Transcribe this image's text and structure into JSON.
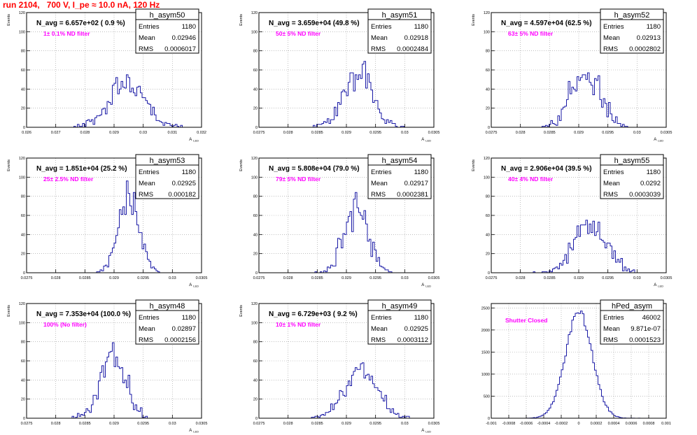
{
  "page": {
    "title": "run 2104,   700 V, I_pe ≈ 10.0 nA, 120 Hz"
  },
  "colors": {
    "histogram_line": "#1a1aa6",
    "annotation": "#ff00ff",
    "title_text": "#ff0000",
    "frame": "#000000",
    "grid": "#999999"
  },
  "chart_data": [
    {
      "type": "histogram",
      "name": "h_asym50",
      "ylabel": "Events",
      "xlabel": "A_LED",
      "navg_text": "N_avg = 6.657e+02 ( 0.9 %)",
      "annotation": "1± 0.1% ND filter",
      "stats": {
        "Entries": "1180",
        "Mean": "0.02946",
        "RMS": "0.0006017"
      },
      "xlim": [
        0.026,
        0.032
      ],
      "ylim": [
        0,
        120
      ],
      "x_ticks": [
        "0.026",
        "0.027",
        "0.028",
        "0.029",
        "0.03",
        "0.031",
        "0.032"
      ],
      "x_tick_values": [
        0.026,
        0.027,
        0.028,
        0.029,
        0.03,
        0.031,
        0.032
      ],
      "y_ticks": [
        0,
        20,
        40,
        60,
        80,
        100,
        120
      ],
      "mean": 0.02946,
      "rms": 0.0006017,
      "entries": 1180,
      "shape": "normal",
      "seed": 11
    },
    {
      "type": "histogram",
      "name": "h_asym51",
      "ylabel": "Events",
      "xlabel": "A_LED",
      "navg_text": "N_avg = 3.659e+04 (49.8 %)",
      "annotation": "50± 5% ND filter",
      "stats": {
        "Entries": "1180",
        "Mean": "0.02918",
        "RMS": "0.0002484"
      },
      "xlim": [
        0.0275,
        0.0305
      ],
      "ylim": [
        0,
        120
      ],
      "x_ticks": [
        "0.0275",
        "0.028",
        "0.0285",
        "0.029",
        "0.0295",
        "0.03",
        "0.0305"
      ],
      "x_tick_values": [
        0.0275,
        0.028,
        0.0285,
        0.029,
        0.0295,
        0.03,
        0.0305
      ],
      "y_ticks": [
        0,
        20,
        40,
        60,
        80,
        100,
        120
      ],
      "mean": 0.02918,
      "rms": 0.0002484,
      "entries": 1180,
      "shape": "normal",
      "seed": 23
    },
    {
      "type": "histogram",
      "name": "h_asym52",
      "ylabel": "Events",
      "xlabel": "A_LED",
      "navg_text": "N_avg = 4.597e+04 (62.5 %)",
      "annotation": "63± 5% ND filter",
      "stats": {
        "Entries": "1180",
        "Mean": "0.02913",
        "RMS": "0.0002802"
      },
      "xlim": [
        0.0275,
        0.0305
      ],
      "ylim": [
        0,
        120
      ],
      "x_ticks": [
        "0.0275",
        "0.028",
        "0.0285",
        "0.029",
        "0.0295",
        "0.03",
        "0.0305"
      ],
      "x_tick_values": [
        0.0275,
        0.028,
        0.0285,
        0.029,
        0.0295,
        0.03,
        0.0305
      ],
      "y_ticks": [
        0,
        20,
        40,
        60,
        80,
        100,
        120
      ],
      "mean": 0.02913,
      "rms": 0.0002802,
      "entries": 1180,
      "shape": "flat",
      "seed": 37
    },
    {
      "type": "histogram",
      "name": "h_asym53",
      "ylabel": "Events",
      "xlabel": "A_LED",
      "navg_text": "N_avg = 1.851e+04 (25.2 %)",
      "annotation": "25± 2.5% ND filter",
      "stats": {
        "Entries": "1180",
        "Mean": "0.02925",
        "RMS": "0.000182"
      },
      "xlim": [
        0.0275,
        0.0305
      ],
      "ylim": [
        0,
        120
      ],
      "x_ticks": [
        "0.0275",
        "0.028",
        "0.0285",
        "0.029",
        "0.0295",
        "0.03",
        "0.0305"
      ],
      "x_tick_values": [
        0.0275,
        0.028,
        0.0285,
        0.029,
        0.0295,
        0.03,
        0.0305
      ],
      "y_ticks": [
        0,
        20,
        40,
        60,
        80,
        100,
        120
      ],
      "mean": 0.02925,
      "rms": 0.000182,
      "entries": 1180,
      "shape": "normal",
      "seed": 41
    },
    {
      "type": "histogram",
      "name": "h_asym54",
      "ylabel": "Events",
      "xlabel": "A_LED",
      "navg_text": "N_avg = 5.808e+04 (79.0 %)",
      "annotation": "79± 5% ND filter",
      "stats": {
        "Entries": "1180",
        "Mean": "0.02917",
        "RMS": "0.0002381"
      },
      "xlim": [
        0.0275,
        0.0305
      ],
      "ylim": [
        0,
        120
      ],
      "x_ticks": [
        "0.0275",
        "0.028",
        "0.0285",
        "0.029",
        "0.0295",
        "0.03",
        "0.0305"
      ],
      "x_tick_values": [
        0.0275,
        0.028,
        0.0285,
        0.029,
        0.0295,
        0.03,
        0.0305
      ],
      "y_ticks": [
        0,
        20,
        40,
        60,
        80,
        100,
        120
      ],
      "mean": 0.02917,
      "rms": 0.0002381,
      "entries": 1180,
      "shape": "flat",
      "seed": 53
    },
    {
      "type": "histogram",
      "name": "h_asym55",
      "ylabel": "Events",
      "xlabel": "A_LED",
      "navg_text": "N_avg = 2.906e+04 (39.5 %)",
      "annotation": "40± 4% ND filter",
      "stats": {
        "Entries": "1180",
        "Mean": "0.0292",
        "RMS": "0.0003039"
      },
      "xlim": [
        0.0275,
        0.0305
      ],
      "ylim": [
        0,
        120
      ],
      "x_ticks": [
        "0.0275",
        "0.028",
        "0.0285",
        "0.029",
        "0.0295",
        "0.03",
        "0.0305"
      ],
      "x_tick_values": [
        0.0275,
        0.028,
        0.0285,
        0.029,
        0.0295,
        0.03,
        0.0305
      ],
      "y_ticks": [
        0,
        20,
        40,
        60,
        80,
        100,
        120
      ],
      "mean": 0.0292,
      "rms": 0.0003039,
      "entries": 1180,
      "shape": "flat",
      "seed": 67
    },
    {
      "type": "histogram",
      "name": "h_asym48",
      "ylabel": "Events",
      "xlabel": "A_LED",
      "navg_text": "N_avg = 7.353e+04 (100.0 %)",
      "annotation": "100% (No filter)",
      "stats": {
        "Entries": "1180",
        "Mean": "0.02897",
        "RMS": "0.0002156"
      },
      "xlim": [
        0.0275,
        0.0305
      ],
      "ylim": [
        0,
        120
      ],
      "x_ticks": [
        "0.0275",
        "0.028",
        "0.0285",
        "0.029",
        "0.0295",
        "0.03",
        "0.0305"
      ],
      "x_tick_values": [
        0.0275,
        0.028,
        0.0285,
        0.029,
        0.0295,
        0.03,
        0.0305
      ],
      "y_ticks": [
        0,
        20,
        40,
        60,
        80,
        100,
        120
      ],
      "mean": 0.02897,
      "rms": 0.0002156,
      "entries": 1180,
      "shape": "normal",
      "seed": 71
    },
    {
      "type": "histogram",
      "name": "h_asym49",
      "ylabel": "Events",
      "xlabel": "A_LED",
      "navg_text": "N_avg = 6.729e+03 ( 9.2 %)",
      "annotation": "10± 1% ND filter",
      "stats": {
        "Entries": "1180",
        "Mean": "0.02925",
        "RMS": "0.0003112"
      },
      "xlim": [
        0.0275,
        0.0305
      ],
      "ylim": [
        0,
        120
      ],
      "x_ticks": [
        "0.0275",
        "0.028",
        "0.0285",
        "0.029",
        "0.0295",
        "0.03",
        "0.0305"
      ],
      "x_tick_values": [
        0.0275,
        0.028,
        0.0285,
        0.029,
        0.0295,
        0.03,
        0.0305
      ],
      "y_ticks": [
        0,
        20,
        40,
        60,
        80,
        100,
        120
      ],
      "mean": 0.02925,
      "rms": 0.0003112,
      "entries": 1180,
      "shape": "flat",
      "seed": 83
    },
    {
      "type": "histogram",
      "name": "hPed_asym",
      "ylabel": "",
      "xlabel": "",
      "navg_text": "",
      "annotation": "Shutter Closed",
      "stats": {
        "Entries": "46002",
        "Mean": "9.871e-07",
        "RMS": "0.0001523"
      },
      "xlim": [
        -0.001,
        0.001
      ],
      "ylim": [
        0,
        2600
      ],
      "x_ticks": [
        "-0.001",
        "-0.0008",
        "-0.0006",
        "-0.0004",
        "-0.0002",
        "0",
        "0.0002",
        "0.0004",
        "0.0006",
        "0.0008",
        "0.001"
      ],
      "x_tick_values": [
        -0.001,
        -0.0008,
        -0.0006,
        -0.0004,
        -0.0002,
        0,
        0.0002,
        0.0004,
        0.0006,
        0.0008,
        0.001
      ],
      "y_ticks": [
        0,
        500,
        1000,
        1500,
        2000,
        2500
      ],
      "mean": 9.871e-07,
      "rms": 0.0001523,
      "entries": 46002,
      "shape": "normal",
      "seed": 97
    }
  ]
}
